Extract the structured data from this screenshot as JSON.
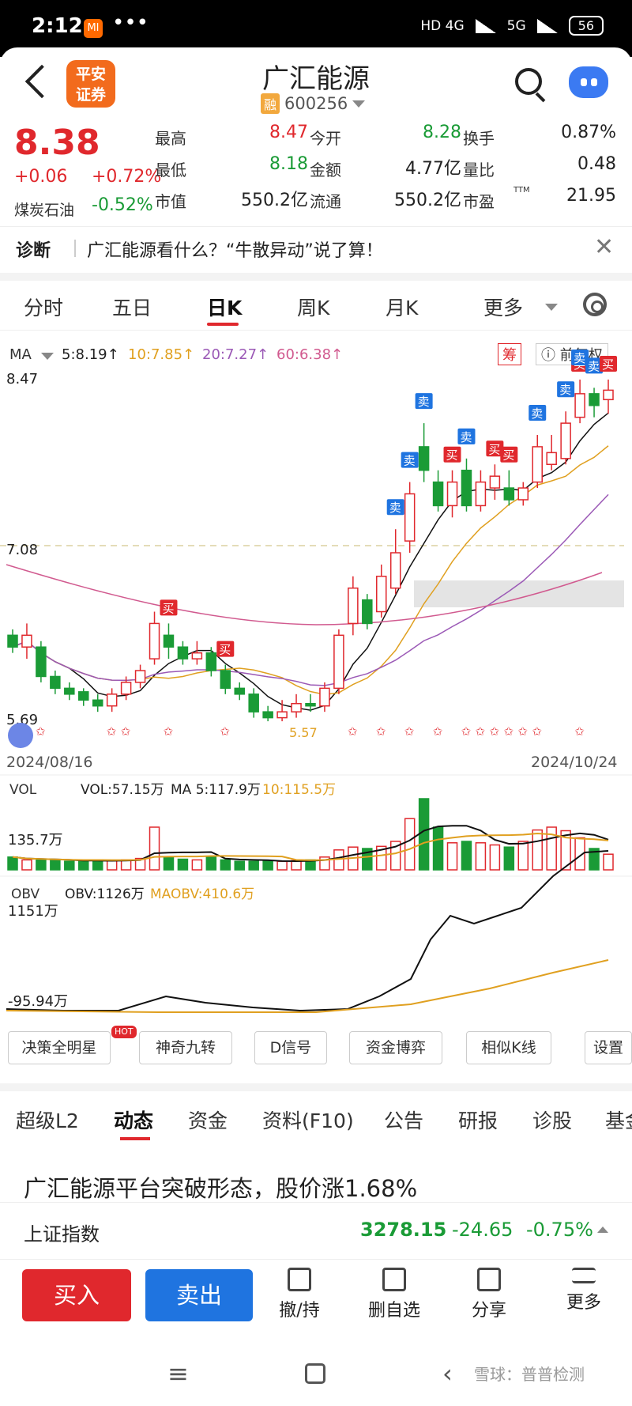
{
  "status": {
    "time": "2:12",
    "mi": "MI",
    "dots": "•••",
    "net1": "HD 4G",
    "net2": "5G",
    "battery": "56"
  },
  "header": {
    "logo_line1": "平安",
    "logo_line2": "证券",
    "name": "广汇能源",
    "rong": "融",
    "code": "600256"
  },
  "quote": {
    "price": "8.38",
    "change": "+0.06",
    "change_pct": "+0.72%",
    "sector": "煤炭石油",
    "sector_chg": "-0.52%",
    "grid": [
      {
        "label": "最高",
        "value": "8.47",
        "color": "red"
      },
      {
        "label": "今开",
        "value": "8.28",
        "color": "green"
      },
      {
        "label": "换手",
        "value": "0.87%",
        "color": "dark"
      },
      {
        "label": "最低",
        "value": "8.18",
        "color": "green"
      },
      {
        "label": "金额",
        "value": "4.77亿",
        "color": "dark"
      },
      {
        "label": "量比",
        "value": "0.48",
        "color": "dark"
      },
      {
        "label": "市值",
        "value": "550.2亿",
        "color": "dark"
      },
      {
        "label": "流通",
        "value": "550.2亿",
        "color": "dark"
      },
      {
        "label": "市盈",
        "value": "21.95",
        "color": "dark"
      }
    ],
    "pe_sup": "TTM"
  },
  "diagnosis": {
    "title": "诊断",
    "text": "广汇能源看什么？“牛散异动”说了算！"
  },
  "tabs": [
    "分时",
    "五日",
    "日K",
    "周K",
    "月K",
    "更多"
  ],
  "ma": {
    "label": "MA",
    "ma5": "5:8.19↑",
    "ma10": "10:7.85↑",
    "ma20": "20:7.27↑",
    "ma60": "60:6.38↑",
    "chou": "筹",
    "fuquan": "前复权"
  },
  "chart_data": {
    "type": "candlestick",
    "y_high_label": "8.47",
    "y_mid_label": "7.08",
    "y_low_label": "5.69",
    "low_marker": "5.57",
    "start_date": "2024/08/16",
    "end_date": "2024/10/24",
    "volume_label": "VOL",
    "vol_text": "VOL:57.15万",
    "vol_ma5": "MA 5:117.9万",
    "vol_ma10": "10:115.5万",
    "vol_axis": "135.7万",
    "obv_label": "OBV",
    "obv_text": "OBV:1126万",
    "maobv_text": "MAOBV:410.6万",
    "obv_high": "1151万",
    "obv_low": "-95.94万",
    "candles": [
      [
        6.3,
        6.2,
        6.35,
        6.15
      ],
      [
        6.2,
        6.3,
        6.4,
        6.1
      ],
      [
        6.2,
        5.95,
        6.25,
        5.9
      ],
      [
        5.95,
        5.85,
        6.0,
        5.8
      ],
      [
        5.85,
        5.8,
        5.9,
        5.75
      ],
      [
        5.82,
        5.75,
        5.85,
        5.7
      ],
      [
        5.75,
        5.7,
        5.8,
        5.65
      ],
      [
        5.7,
        5.8,
        5.85,
        5.65
      ],
      [
        5.8,
        5.9,
        5.95,
        5.75
      ],
      [
        5.9,
        6.0,
        6.05,
        5.85
      ],
      [
        6.1,
        6.4,
        6.5,
        6.05
      ],
      [
        6.3,
        6.2,
        6.4,
        6.1
      ],
      [
        6.2,
        6.1,
        6.25,
        6.05
      ],
      [
        6.1,
        6.15,
        6.25,
        6.05
      ],
      [
        6.15,
        6.0,
        6.2,
        5.95
      ],
      [
        6.0,
        5.85,
        6.05,
        5.8
      ],
      [
        5.85,
        5.8,
        5.9,
        5.75
      ],
      [
        5.8,
        5.65,
        5.85,
        5.6
      ],
      [
        5.65,
        5.6,
        5.7,
        5.57
      ],
      [
        5.6,
        5.65,
        5.75,
        5.57
      ],
      [
        5.65,
        5.72,
        5.8,
        5.6
      ],
      [
        5.72,
        5.7,
        5.8,
        5.65
      ],
      [
        5.7,
        5.85,
        5.9,
        5.65
      ],
      [
        5.85,
        6.3,
        6.35,
        5.8
      ],
      [
        6.4,
        6.7,
        6.8,
        6.3
      ],
      [
        6.6,
        6.4,
        6.65,
        6.35
      ],
      [
        6.5,
        6.8,
        6.9,
        6.45
      ],
      [
        6.7,
        7.0,
        7.2,
        6.65
      ],
      [
        7.1,
        7.5,
        7.6,
        7.0
      ],
      [
        7.9,
        7.7,
        8.1,
        7.6
      ],
      [
        7.6,
        7.4,
        7.7,
        7.35
      ],
      [
        7.4,
        7.6,
        7.7,
        7.3
      ],
      [
        7.7,
        7.4,
        7.8,
        7.35
      ],
      [
        7.4,
        7.6,
        7.7,
        7.35
      ],
      [
        7.55,
        7.65,
        7.75,
        7.45
      ],
      [
        7.55,
        7.45,
        7.7,
        7.4
      ],
      [
        7.45,
        7.55,
        7.6,
        7.4
      ],
      [
        7.6,
        7.9,
        8.0,
        7.55
      ],
      [
        7.75,
        7.85,
        8.0,
        7.7
      ],
      [
        7.8,
        8.1,
        8.2,
        7.75
      ],
      [
        8.15,
        8.35,
        8.47,
        8.1
      ],
      [
        8.35,
        8.25,
        8.4,
        8.15
      ],
      [
        8.3,
        8.38,
        8.47,
        8.18
      ]
    ],
    "vol": [
      18,
      14,
      14,
      13,
      12,
      12,
      14,
      13,
      14,
      16,
      60,
      18,
      15,
      14,
      18,
      14,
      12,
      12,
      12,
      12,
      13,
      14,
      18,
      28,
      32,
      30,
      33,
      40,
      72,
      100,
      60,
      38,
      40,
      38,
      35,
      32,
      40,
      56,
      60,
      55,
      45,
      30,
      22
    ],
    "signals": [
      "买",
      "买",
      "卖",
      "卖",
      "卖",
      "买",
      "卖",
      "买",
      "卖",
      "买",
      "卖",
      "卖",
      "买",
      "卖",
      "卖",
      "买"
    ]
  },
  "func_buttons": [
    "决策全明星",
    "神奇九转",
    "D信号",
    "资金博弈",
    "相似K线",
    "设置"
  ],
  "hot": "HOT",
  "info_tabs": [
    "超级L2",
    "动态",
    "资金",
    "资料(F10)",
    "公告",
    "研报",
    "诊股",
    "基金"
  ],
  "news": "广汇能源平台突破形态，股价涨1.68%",
  "index": {
    "name": "上证指数",
    "value": "3278.15",
    "chg": "-24.65",
    "pct": "-0.75%"
  },
  "bottom": {
    "buy": "买入",
    "sell": "卖出",
    "a1": "撤/持",
    "a2": "删自选",
    "a3": "分享",
    "a4": "更多"
  },
  "watermark": "雪球：普普检测"
}
